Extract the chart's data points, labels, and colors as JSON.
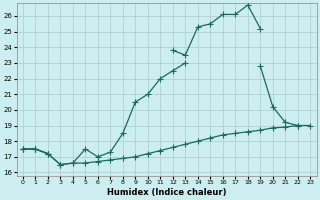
{
  "title": "",
  "xlabel": "Humidex (Indice chaleur)",
  "bg_color": "#cceef0",
  "grid_color": "#aacccc",
  "line_color": "#1a6b5a",
  "xlim": [
    -0.5,
    23.5
  ],
  "ylim": [
    15.8,
    26.8
  ],
  "xticks": [
    0,
    1,
    2,
    3,
    4,
    5,
    6,
    7,
    8,
    9,
    10,
    11,
    12,
    13,
    14,
    15,
    16,
    17,
    18,
    19,
    20,
    21,
    22,
    23
  ],
  "yticks": [
    16,
    17,
    18,
    19,
    20,
    21,
    22,
    23,
    24,
    25,
    26
  ],
  "line1_x": [
    0,
    1,
    2,
    3,
    4,
    5,
    6,
    7,
    8,
    9,
    10,
    11,
    12,
    13,
    14,
    15,
    16,
    17,
    18,
    19,
    20,
    21,
    22,
    23
  ],
  "line1_y": [
    17.5,
    17.5,
    17.2,
    16.5,
    16.6,
    16.6,
    16.7,
    16.8,
    16.9,
    17.0,
    17.2,
    17.4,
    17.6,
    17.8,
    18.0,
    18.2,
    18.4,
    18.5,
    18.6,
    18.7,
    18.85,
    18.9,
    19.0,
    19.0
  ],
  "line2_x": [
    0,
    1,
    2,
    3,
    4,
    5,
    6,
    7,
    8,
    9,
    10,
    11,
    12,
    13,
    14,
    15,
    16,
    17,
    18,
    19,
    20,
    21,
    22,
    23
  ],
  "line2_y": [
    17.5,
    17.5,
    17.2,
    16.5,
    16.6,
    17.5,
    17.0,
    17.3,
    18.5,
    20.5,
    21.0,
    22.0,
    22.5,
    23.0,
    null,
    null,
    null,
    null,
    null,
    22.8,
    20.2,
    19.2,
    19.0,
    null
  ],
  "line3_x": [
    0,
    1,
    2,
    3,
    4,
    5,
    6,
    7,
    8,
    9,
    10,
    11,
    12,
    13,
    14,
    15,
    16,
    17,
    18,
    19,
    20,
    21,
    22,
    23
  ],
  "line3_y": [
    17.5,
    17.5,
    17.2,
    null,
    null,
    null,
    null,
    null,
    null,
    null,
    null,
    null,
    23.8,
    23.5,
    25.3,
    25.5,
    26.1,
    26.1,
    26.7,
    25.2,
    null,
    null,
    null,
    null
  ]
}
